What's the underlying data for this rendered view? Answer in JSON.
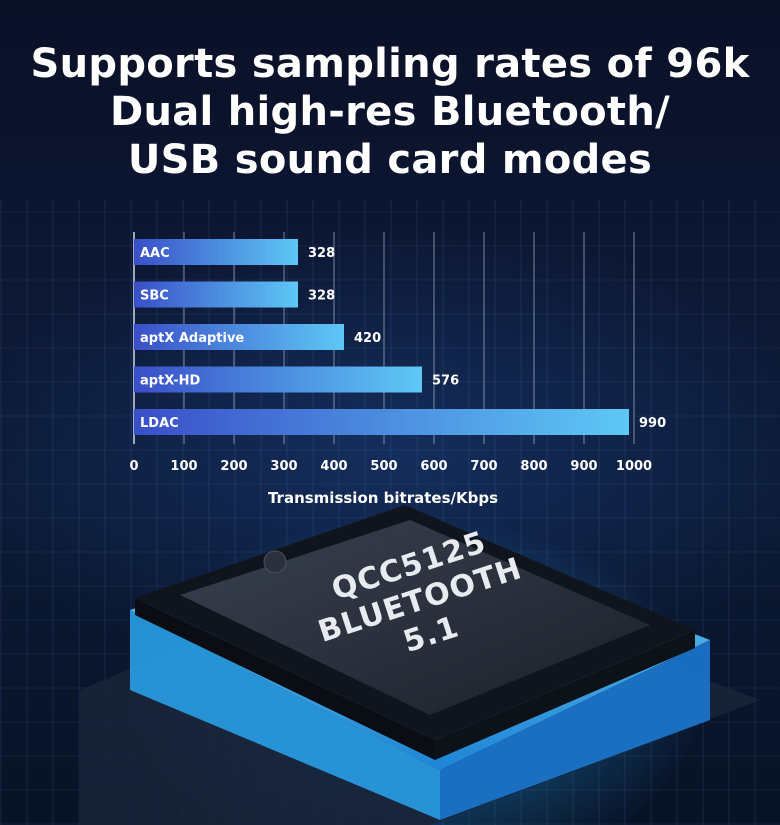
{
  "headline": {
    "line1": "Supports sampling rates of 96k",
    "line2": "Dual high-res Bluetooth/",
    "line3": "USB sound card modes"
  },
  "chip": {
    "line1": "QCC5125",
    "line2": "BLUETOOTH",
    "line3": "5.1"
  },
  "colors": {
    "bar_start": "#3a4fc8",
    "bar_end": "#5ec8f5",
    "text": "#ffffff",
    "chip_glow": "#38c4ff"
  },
  "chart_data": {
    "type": "bar",
    "orientation": "horizontal",
    "categories": [
      "AAC",
      "SBC",
      "aptX Adaptive",
      "aptX-HD",
      "LDAC"
    ],
    "values": [
      328,
      328,
      420,
      576,
      990
    ],
    "xlabel": "Transmission bitrates/Kbps",
    "xlim": [
      0,
      1000
    ],
    "xticks": [
      0,
      100,
      200,
      300,
      400,
      500,
      600,
      700,
      800,
      900,
      1000
    ],
    "grid": true
  }
}
